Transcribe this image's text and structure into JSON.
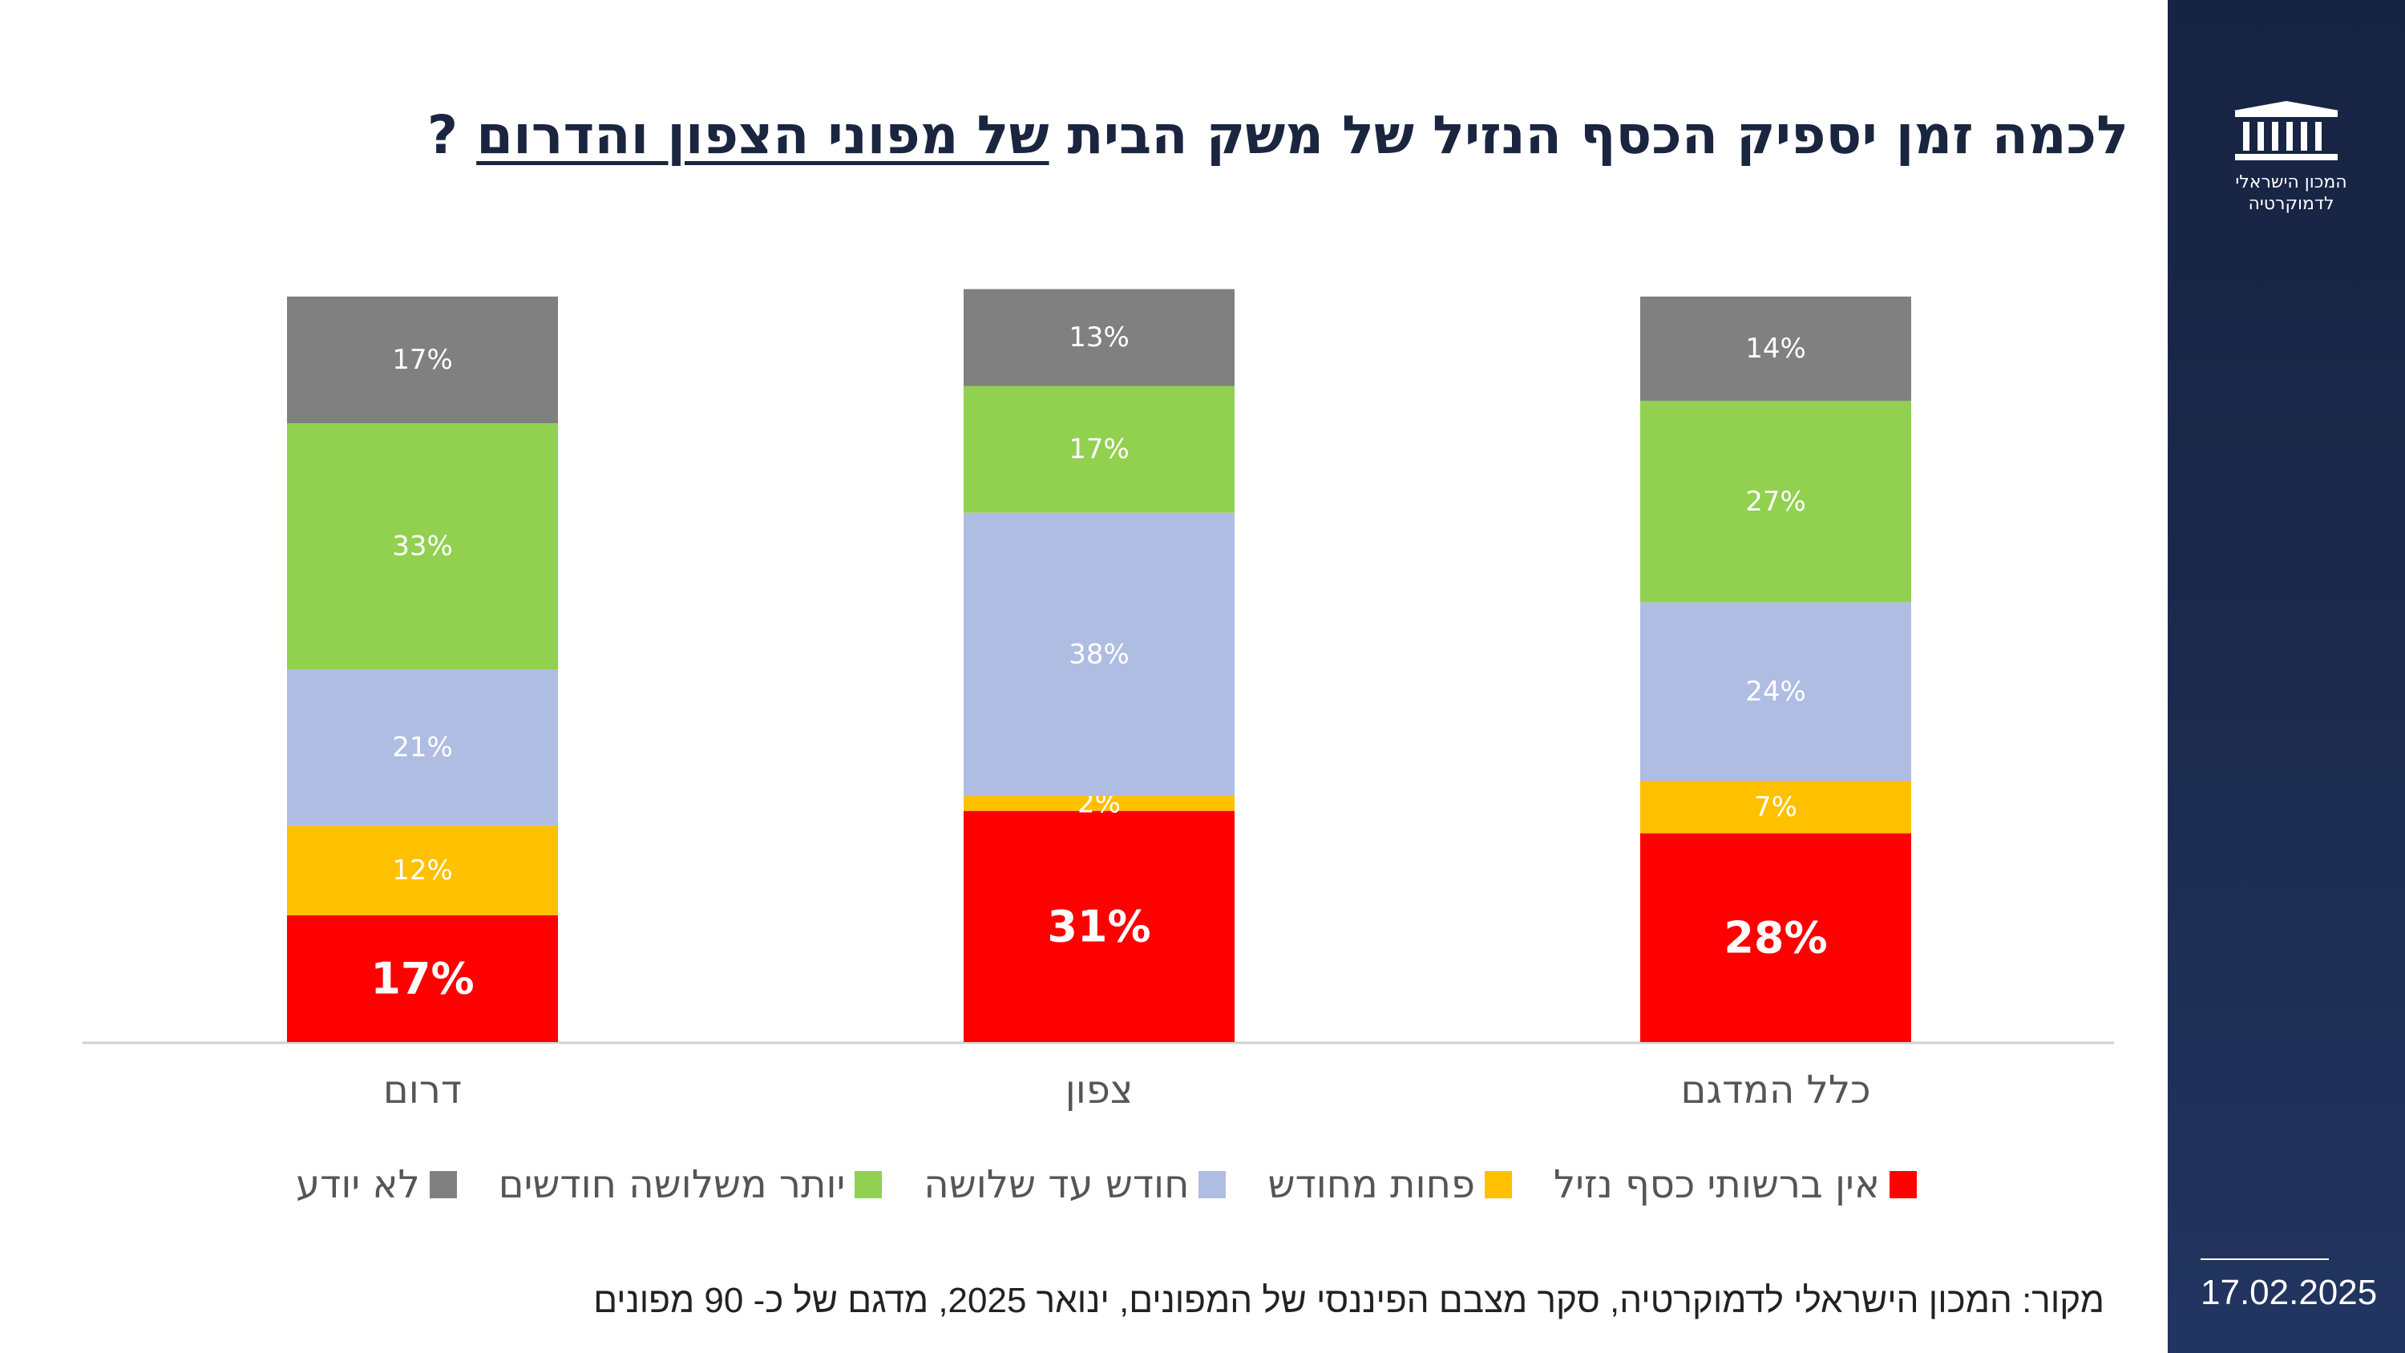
{
  "title": {
    "plain": "לכמה זמן יספיק הכסף הנזיל של משק הבית",
    "underlined": "של מפוני הצפון והדרום",
    "mark": "?"
  },
  "logo": {
    "icon": "parliament-building-icon",
    "line1": "המכון הישראלי",
    "line2": "לדמוקרטיה"
  },
  "date": "17.02.2025",
  "source": "מקור: המכון הישראלי לדמוקרטיה,  סקר מצבם הפיננסי של המפונים, ינואר 2025, מדגם של כ- 90 מפונים",
  "colors": {
    "sidebar": "#1b2a4c",
    "title": "#1a2540"
  },
  "chart_data": {
    "type": "bar",
    "stacked": true,
    "categories": [
      "דרום",
      "צפון",
      "כלל המדגם"
    ],
    "series": [
      {
        "name": "אין ברשותי כסף נזיל",
        "color": "#ff0000",
        "values": [
          17,
          31,
          28
        ]
      },
      {
        "name": "פחות מחודש",
        "color": "#ffc000",
        "values": [
          12,
          2,
          7
        ]
      },
      {
        "name": "חודש עד שלושה",
        "color": "#b0bde2",
        "values": [
          21,
          38,
          24
        ]
      },
      {
        "name": "יותר משלושה חודשים",
        "color": "#92d050",
        "values": [
          33,
          17,
          27
        ]
      },
      {
        "name": "לא יודע",
        "color": "#808080",
        "values": [
          17,
          13,
          14
        ]
      }
    ],
    "value_suffix": "%",
    "ylim": [
      0,
      100
    ],
    "grid": false,
    "legend_position": "bottom"
  }
}
